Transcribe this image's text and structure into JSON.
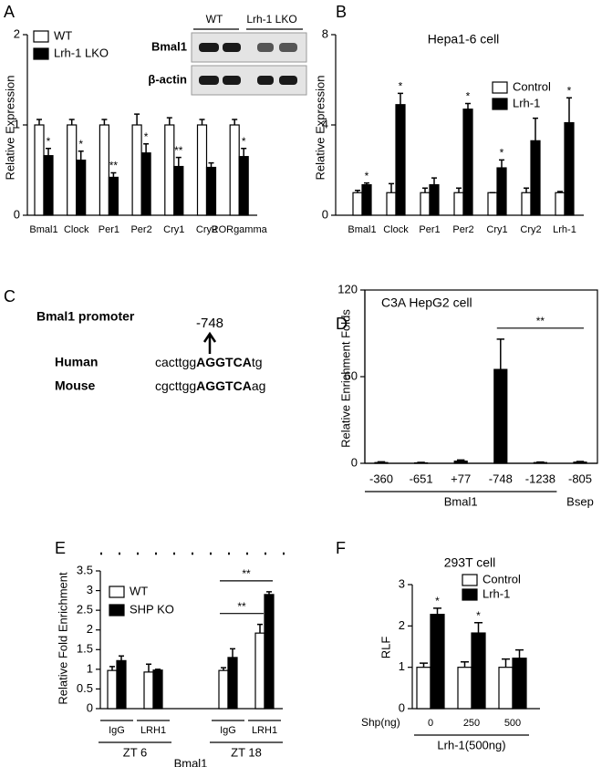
{
  "chart_data": [
    {
      "type": "bar",
      "panel": "A",
      "ylabel": "Relative Expression",
      "categories": [
        "Bmal1",
        "Clock",
        "Per1",
        "Per2",
        "Cry1",
        "Cry2",
        "RORgamma"
      ],
      "series": [
        {
          "name": "WT",
          "color": "#ffffff",
          "values": [
            1,
            1,
            1,
            1,
            1,
            1,
            1
          ],
          "errors": [
            0.06,
            0.06,
            0.06,
            0.12,
            0.08,
            0.06,
            0.06
          ]
        },
        {
          "name": "Lrh-1 LKO",
          "color": "#000000",
          "values": [
            0.66,
            0.61,
            0.42,
            0.69,
            0.54,
            0.53,
            0.65
          ],
          "errors": [
            0.08,
            0.1,
            0.05,
            0.1,
            0.1,
            0.05,
            0.09
          ],
          "significance": [
            "*",
            "*",
            "**",
            "*",
            "**",
            null,
            "*"
          ]
        }
      ],
      "ylim": [
        0,
        2
      ],
      "yticks": [
        0,
        1,
        2
      ],
      "legend": "upper left",
      "blot": {
        "columns": [
          "WT",
          "Lrh-1 LKO"
        ],
        "rows": [
          "Bmal1",
          "β-actin"
        ]
      }
    },
    {
      "type": "bar",
      "panel": "B",
      "title": "Hepa1-6 cell",
      "ylabel": "Relative Expression",
      "categories": [
        "Bmal1",
        "Clock",
        "Per1",
        "Per2",
        "Cry1",
        "Cry2",
        "Lrh-1"
      ],
      "series": [
        {
          "name": "Control",
          "color": "#ffffff",
          "values": [
            1,
            1,
            1,
            1,
            1,
            1,
            1
          ],
          "errors": [
            0.1,
            0.4,
            0.2,
            0.2,
            0,
            0.2,
            0.05
          ]
        },
        {
          "name": "Lrh-1",
          "color": "#000000",
          "values": [
            1.35,
            4.9,
            1.35,
            4.7,
            2.1,
            3.3,
            4.1
          ],
          "errors": [
            0.08,
            0.5,
            0.3,
            0.25,
            0.35,
            1.0,
            1.1
          ],
          "significance": [
            "*",
            "*",
            null,
            "*",
            "*",
            null,
            "*"
          ]
        }
      ],
      "ylim": [
        0,
        8
      ],
      "yticks": [
        0,
        4,
        8
      ],
      "legend": "upper right"
    },
    {
      "type": "bar",
      "panel": "D",
      "title": "C3A HepG2 cell",
      "ylabel": "Relative Enrichment Folds",
      "categories": [
        "-360",
        "-651",
        "+77",
        "-748",
        "-1238",
        "-805"
      ],
      "series": [
        {
          "color": "#000000",
          "values": [
            0.5,
            0.3,
            1.5,
            65,
            0.5,
            0.8
          ],
          "errors": [
            0.5,
            0.3,
            0.8,
            21,
            0.4,
            0.5
          ]
        }
      ],
      "ylim": [
        0,
        120
      ],
      "yticks": [
        0,
        60,
        120
      ],
      "frame": true,
      "groups": [
        {
          "label": "Bmal1",
          "span": [
            0,
            4
          ]
        },
        {
          "label": "Bsep",
          "span": [
            5,
            5
          ]
        }
      ],
      "comparisons": [
        {
          "label": "**",
          "between": [
            [
              3,
              0
            ],
            [
              5,
              0
            ]
          ]
        }
      ]
    },
    {
      "type": "bar",
      "panel": "E",
      "ylabel": "Relative Fold Enrichment",
      "categories": [
        "IgG",
        "LRH1",
        "IgG",
        "LRH1"
      ],
      "series": [
        {
          "name": "WT",
          "color": "#ffffff",
          "values": [
            0.97,
            0.93,
            0.97,
            1.92
          ],
          "errors": [
            0.1,
            0.2,
            0.07,
            0.22
          ]
        },
        {
          "name": "SHP KO",
          "color": "#000000",
          "values": [
            1.22,
            0.98,
            1.3,
            2.9
          ],
          "errors": [
            0.12,
            0.02,
            0.22,
            0.07
          ]
        }
      ],
      "ylim": [
        0,
        3.5
      ],
      "yticks": [
        0,
        0.5,
        1,
        1.5,
        2,
        2.5,
        3,
        3.5
      ],
      "legend": "upper left",
      "groups": [
        {
          "label": "ZT 6",
          "span": [
            0,
            1
          ]
        },
        {
          "label": "ZT 18",
          "span": [
            2,
            3
          ]
        }
      ],
      "group_title": "Bmal1",
      "comparisons": [
        {
          "label": "**",
          "between": [
            [
              2,
              0
            ],
            [
              3,
              0
            ]
          ]
        },
        {
          "label": "**",
          "between": [
            [
              2,
              0
            ],
            [
              3,
              1
            ]
          ]
        }
      ]
    },
    {
      "type": "bar",
      "panel": "F",
      "title": "293T cell",
      "ylabel": "RLF",
      "xlabel": "Shp(ng)",
      "categories": [
        "0",
        "250",
        "500"
      ],
      "series": [
        {
          "name": "Control",
          "color": "#ffffff",
          "values": [
            1,
            1,
            1
          ],
          "errors": [
            0.1,
            0.13,
            0.2
          ]
        },
        {
          "name": "Lrh-1",
          "color": "#000000",
          "values": [
            2.28,
            1.83,
            1.22
          ],
          "errors": [
            0.15,
            0.25,
            0.2
          ],
          "significance": [
            "*",
            "*",
            null
          ]
        }
      ],
      "ylim": [
        0,
        3
      ],
      "yticks": [
        0,
        1,
        2,
        3
      ],
      "legend": "upper center",
      "groups": [
        {
          "label": "Lrh-1(500ng)",
          "span": [
            0,
            2
          ]
        }
      ]
    }
  ],
  "diagram": {
    "panel": "C",
    "title": "Bmal1 promoter",
    "site": "-748",
    "rows": [
      {
        "species": "Human",
        "prefix": "cacttgg",
        "motif": "AGGTCA",
        "suffix": "tg"
      },
      {
        "species": "Mouse",
        "prefix": "cgcttgg",
        "motif": "AGGTCA",
        "suffix": "ag"
      }
    ]
  }
}
